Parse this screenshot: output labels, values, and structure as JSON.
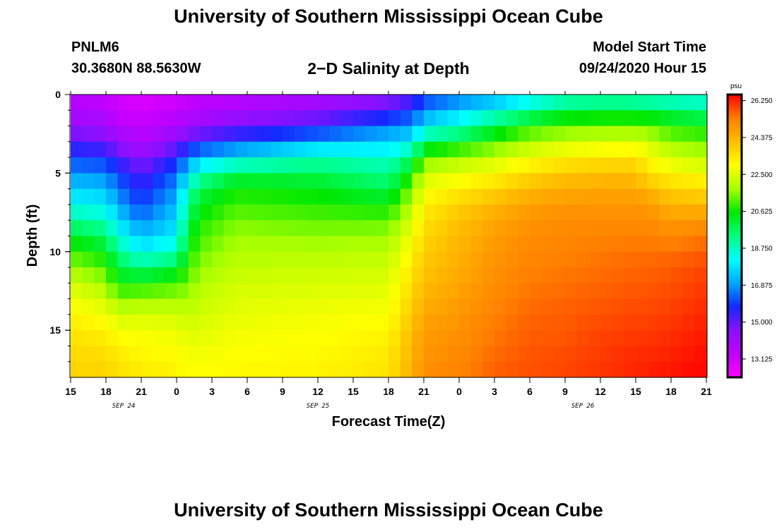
{
  "page": {
    "title_top": "University of Southern Mississippi Ocean Cube",
    "title_bottom": "University of Southern Mississippi Ocean Cube",
    "station_id": "PNLM6",
    "station_coords": "30.3680N 88.5630W",
    "subtitle": "2−D Salinity at Depth",
    "model_start_label": "Model Start Time",
    "model_start_value": "09/24/2020 Hour 15"
  },
  "chart_data": {
    "type": "heatmap",
    "title": "2−D Salinity at Depth",
    "xlabel": "Forecast Time(Z)",
    "ylabel": "Depth (ft)",
    "x_hours_from_start": [
      0,
      54
    ],
    "x_tick_labels": [
      "15",
      "18",
      "21",
      "0",
      "3",
      "6",
      "9",
      "12",
      "15",
      "18",
      "21",
      "0",
      "3",
      "6",
      "9",
      "12",
      "15",
      "18",
      "21"
    ],
    "x_tick_hours": [
      0,
      3,
      6,
      9,
      12,
      15,
      18,
      21,
      24,
      27,
      30,
      33,
      36,
      39,
      42,
      45,
      48,
      51,
      54
    ],
    "date_labels": [
      {
        "text": "SEP 24",
        "hour": 4.5
      },
      {
        "text": "SEP 25",
        "hour": 21
      },
      {
        "text": "SEP 26",
        "hour": 43.5
      }
    ],
    "ylim": [
      0,
      18
    ],
    "y_tick_labels": [
      "0",
      "5",
      "10",
      "15"
    ],
    "y_tick_values": [
      0,
      5,
      10,
      15
    ],
    "y_reversed": true,
    "colorbar": {
      "unit": "psu",
      "min": 12.19,
      "max": 26.56,
      "labels": [
        "26.250",
        "24.375",
        "22.500",
        "20.625",
        "18.750",
        "16.875",
        "15.000",
        "13.125"
      ],
      "label_values": [
        26.25,
        24.375,
        22.5,
        20.625,
        18.75,
        16.875,
        15.0,
        13.125
      ],
      "colors_low_to_high": [
        "#ff00ff",
        "#c000ff",
        "#8a10ff",
        "#1428ff",
        "#00a8ff",
        "#00ffff",
        "#00ff80",
        "#00e800",
        "#a8ff00",
        "#ffff00",
        "#ffbf00",
        "#ff7f00",
        "#ff0000"
      ]
    },
    "profiles_salinity_psu": {
      "depths_ft": [
        0,
        1,
        2,
        3,
        4,
        5,
        6,
        7,
        8,
        9,
        10,
        11,
        12,
        13,
        14,
        15,
        16,
        17,
        18
      ],
      "series": [
        {
          "hour": 0,
          "values": [
            13.5,
            13.8,
            14.3,
            15.2,
            16.0,
            16.8,
            17.5,
            18.3,
            19.2,
            20.2,
            21.0,
            21.7,
            22.3,
            22.8,
            23.1,
            23.4,
            23.6,
            23.7,
            23.8
          ]
        },
        {
          "hour": 3,
          "values": [
            13.3,
            13.6,
            14.1,
            14.9,
            15.8,
            16.6,
            17.3,
            18.0,
            18.8,
            19.6,
            20.4,
            21.1,
            21.7,
            22.3,
            22.8,
            23.2,
            23.5,
            23.7,
            23.8
          ]
        },
        {
          "hour": 4,
          "values": [
            13.0,
            13.2,
            13.6,
            14.3,
            15.2,
            16.0,
            16.5,
            17.0,
            17.7,
            18.5,
            19.3,
            20.0,
            20.6,
            21.5,
            22.3,
            22.8,
            23.2,
            23.4,
            23.6
          ]
        },
        {
          "hour": 6,
          "values": [
            12.8,
            13.0,
            13.3,
            13.8,
            14.4,
            15.1,
            15.6,
            16.0,
            16.6,
            17.3,
            18.2,
            19.4,
            20.6,
            21.7,
            22.4,
            22.8,
            23.0,
            23.2,
            23.4
          ]
        },
        {
          "hour": 9,
          "values": [
            13.0,
            13.3,
            13.8,
            14.6,
            15.6,
            16.3,
            16.8,
            17.2,
            17.6,
            18.0,
            18.8,
            20.0,
            21.0,
            21.8,
            22.3,
            22.7,
            22.9,
            23.1,
            23.2
          ]
        },
        {
          "hour": 10,
          "values": [
            13.2,
            13.5,
            14.1,
            15.2,
            16.5,
            17.8,
            18.8,
            19.4,
            19.8,
            20.2,
            20.6,
            21.0,
            21.4,
            21.8,
            22.2,
            22.5,
            22.7,
            22.9,
            23.0
          ]
        },
        {
          "hour": 11,
          "values": [
            13.3,
            13.6,
            14.3,
            15.5,
            17.2,
            18.8,
            19.8,
            20.3,
            20.7,
            21.0,
            21.3,
            21.6,
            21.9,
            22.1,
            22.3,
            22.5,
            22.7,
            22.9,
            23.0
          ]
        },
        {
          "hour": 14,
          "values": [
            13.5,
            13.9,
            14.8,
            16.0,
            17.8,
            19.8,
            20.6,
            21.0,
            21.4,
            21.7,
            21.9,
            22.1,
            22.3,
            22.5,
            22.6,
            22.8,
            22.9,
            23.0,
            23.1
          ]
        },
        {
          "hour": 21,
          "values": [
            13.8,
            14.3,
            15.4,
            17.0,
            18.8,
            19.8,
            20.4,
            20.8,
            21.2,
            21.6,
            21.9,
            22.2,
            22.4,
            22.6,
            22.8,
            22.9,
            23.0,
            23.1,
            23.2
          ]
        },
        {
          "hour": 27,
          "values": [
            14.3,
            15.2,
            16.5,
            17.5,
            18.6,
            19.2,
            19.8,
            20.5,
            21.2,
            21.7,
            22.0,
            22.3,
            22.5,
            22.7,
            22.9,
            23.1,
            23.3,
            23.4,
            23.5
          ]
        },
        {
          "hour": 29,
          "values": [
            15.0,
            15.8,
            16.8,
            18.0,
            19.6,
            20.6,
            21.5,
            22.0,
            22.4,
            22.8,
            23.1,
            23.4,
            23.6,
            23.8,
            24.0,
            24.2,
            24.3,
            24.4,
            24.5
          ]
        },
        {
          "hour": 30,
          "values": [
            15.8,
            16.6,
            17.8,
            19.6,
            21.2,
            22.2,
            22.8,
            23.2,
            23.5,
            23.7,
            23.9,
            24.0,
            24.2,
            24.4,
            24.6,
            24.8,
            24.9,
            25.0,
            25.1
          ]
        },
        {
          "hour": 33,
          "values": [
            16.2,
            17.5,
            18.6,
            20.2,
            21.8,
            22.6,
            23.3,
            23.8,
            24.1,
            24.3,
            24.4,
            24.5,
            24.6,
            24.8,
            24.9,
            25.0,
            25.1,
            25.2,
            25.3
          ]
        },
        {
          "hour": 36,
          "values": [
            16.8,
            18.2,
            19.8,
            21.0,
            22.2,
            23.0,
            23.7,
            24.3,
            24.6,
            24.8,
            24.9,
            25.0,
            25.1,
            25.2,
            25.3,
            25.4,
            25.5,
            25.6,
            25.7
          ]
        },
        {
          "hour": 39,
          "values": [
            17.8,
            19.0,
            20.8,
            21.8,
            22.8,
            23.6,
            24.3,
            24.7,
            25.0,
            25.1,
            25.2,
            25.3,
            25.4,
            25.5,
            25.6,
            25.7,
            25.7,
            25.8,
            25.8
          ]
        },
        {
          "hour": 42,
          "values": [
            18.4,
            19.8,
            21.2,
            22.2,
            23.2,
            24.0,
            24.5,
            24.9,
            25.1,
            25.2,
            25.3,
            25.4,
            25.5,
            25.6,
            25.7,
            25.7,
            25.8,
            25.9,
            25.9
          ]
        },
        {
          "hour": 45,
          "values": [
            18.5,
            20.0,
            21.3,
            22.4,
            23.4,
            24.1,
            24.6,
            24.9,
            25.1,
            25.3,
            25.4,
            25.5,
            25.6,
            25.7,
            25.8,
            25.9,
            26.0,
            26.0,
            26.1
          ]
        },
        {
          "hour": 48,
          "values": [
            18.4,
            20.0,
            21.3,
            22.5,
            23.5,
            24.1,
            24.6,
            24.9,
            25.1,
            25.3,
            25.5,
            25.6,
            25.7,
            25.8,
            25.9,
            26.0,
            26.1,
            26.2,
            26.2
          ]
        },
        {
          "hour": 49,
          "values": [
            18.3,
            19.9,
            21.2,
            22.3,
            23.0,
            23.5,
            24.3,
            24.9,
            25.1,
            25.3,
            25.5,
            25.6,
            25.7,
            25.8,
            25.9,
            26.0,
            26.1,
            26.2,
            26.3
          ]
        },
        {
          "hour": 51,
          "values": [
            18.2,
            19.6,
            20.8,
            21.6,
            22.4,
            23.1,
            23.8,
            24.3,
            24.8,
            25.2,
            25.5,
            25.7,
            25.8,
            25.9,
            26.0,
            26.1,
            26.2,
            26.3,
            26.4
          ]
        },
        {
          "hour": 54,
          "values": [
            18.2,
            19.3,
            20.5,
            21.3,
            22.0,
            22.8,
            23.6,
            24.3,
            24.9,
            25.4,
            25.7,
            25.9,
            26.0,
            26.1,
            26.2,
            26.3,
            26.4,
            26.5,
            26.5
          ]
        }
      ]
    }
  }
}
